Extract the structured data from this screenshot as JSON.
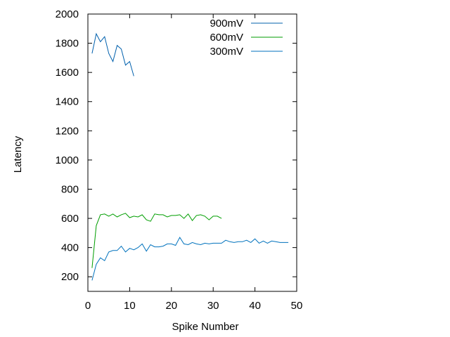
{
  "chart_data": {
    "type": "line",
    "title": "",
    "xlabel": "Spike Number",
    "ylabel": "Latency",
    "xlim": [
      0,
      50
    ],
    "ylim": [
      100,
      2000
    ],
    "xticks": [
      0,
      10,
      20,
      30,
      40,
      50
    ],
    "yticks": [
      200,
      400,
      600,
      800,
      1000,
      1200,
      1400,
      1600,
      1800,
      2000
    ],
    "grid": false,
    "legend_position": "top-right",
    "series": [
      {
        "name": "900mV",
        "color": "#0060ad",
        "x": [
          1,
          2,
          3,
          4,
          5,
          6,
          7,
          8,
          9,
          10,
          11
        ],
        "y": [
          1730,
          1865,
          1810,
          1845,
          1730,
          1675,
          1785,
          1760,
          1650,
          1675,
          1575
        ]
      },
      {
        "name": "600mV",
        "color": "#009e00",
        "x": [
          1,
          2,
          3,
          4,
          5,
          6,
          7,
          8,
          9,
          10,
          11,
          12,
          13,
          14,
          15,
          16,
          17,
          18,
          19,
          20,
          21,
          22,
          23,
          24,
          25,
          26,
          27,
          28,
          29,
          30,
          31,
          32
        ],
        "y": [
          260,
          550,
          625,
          630,
          615,
          630,
          610,
          625,
          635,
          605,
          615,
          610,
          625,
          590,
          580,
          630,
          625,
          625,
          610,
          620,
          620,
          625,
          600,
          630,
          585,
          620,
          625,
          615,
          590,
          615,
          615,
          600
        ]
      },
      {
        "name": "300mV",
        "color": "#0072bd",
        "x": [
          1,
          2,
          3,
          4,
          5,
          6,
          7,
          8,
          9,
          10,
          11,
          12,
          13,
          14,
          15,
          16,
          17,
          18,
          19,
          20,
          21,
          22,
          23,
          24,
          25,
          26,
          27,
          28,
          29,
          30,
          31,
          32,
          33,
          34,
          35,
          36,
          37,
          38,
          39,
          40,
          41,
          42,
          43,
          44,
          45,
          46,
          47,
          48
        ],
        "y": [
          175,
          285,
          330,
          310,
          370,
          380,
          380,
          410,
          370,
          395,
          385,
          400,
          425,
          375,
          420,
          405,
          405,
          410,
          425,
          425,
          415,
          470,
          425,
          420,
          435,
          425,
          420,
          430,
          425,
          430,
          430,
          430,
          450,
          440,
          435,
          440,
          440,
          450,
          435,
          460,
          430,
          445,
          430,
          445,
          440,
          435,
          435,
          435
        ]
      }
    ]
  }
}
